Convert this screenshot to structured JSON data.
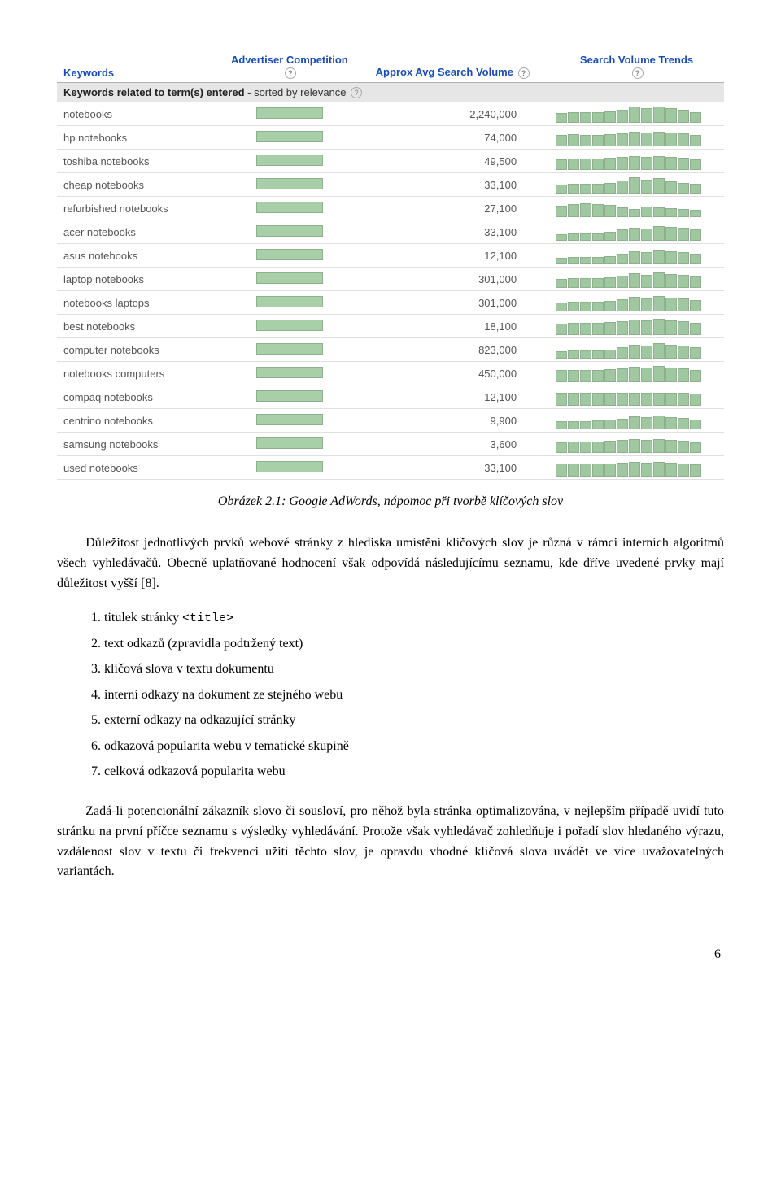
{
  "table": {
    "headers": {
      "keywords": "Keywords",
      "competition": "Advertiser Competition",
      "volume": "Approx Avg Search Volume",
      "trends": "Search Volume Trends"
    },
    "subheader_bold": "Keywords related to term(s) entered",
    "subheader_rest": " - sorted by relevance",
    "bar_color": "#a8cfa8",
    "bar_border": "#8fb08f",
    "header_color": "#1a4db3",
    "rows": [
      {
        "kw": "notebooks",
        "vol": "2,240,000",
        "trend": [
          10,
          11,
          11,
          11,
          12,
          14,
          18,
          16,
          18,
          16,
          14,
          11
        ]
      },
      {
        "kw": "hp notebooks",
        "vol": "74,000",
        "trend": [
          12,
          13,
          12,
          12,
          13,
          14,
          16,
          15,
          16,
          15,
          14,
          12
        ]
      },
      {
        "kw": "toshiba notebooks",
        "vol": "49,500",
        "trend": [
          11,
          12,
          12,
          12,
          13,
          14,
          15,
          14,
          15,
          14,
          13,
          11
        ]
      },
      {
        "kw": "cheap notebooks",
        "vol": "33,100",
        "trend": [
          9,
          10,
          10,
          10,
          11,
          14,
          18,
          15,
          17,
          13,
          11,
          10
        ]
      },
      {
        "kw": "refurbished notebooks",
        "vol": "27,100",
        "trend": [
          12,
          14,
          15,
          14,
          13,
          10,
          8,
          11,
          10,
          9,
          8,
          7
        ]
      },
      {
        "kw": "acer notebooks",
        "vol": "33,100",
        "trend": [
          6,
          7,
          7,
          7,
          9,
          12,
          14,
          13,
          16,
          15,
          14,
          12
        ]
      },
      {
        "kw": "asus notebooks",
        "vol": "12,100",
        "trend": [
          6,
          7,
          7,
          7,
          8,
          11,
          14,
          13,
          15,
          14,
          13,
          11
        ]
      },
      {
        "kw": "laptop notebooks",
        "vol": "301,000",
        "trend": [
          9,
          10,
          10,
          10,
          11,
          13,
          16,
          14,
          17,
          15,
          14,
          12
        ]
      },
      {
        "kw": "notebooks laptops",
        "vol": "301,000",
        "trend": [
          9,
          10,
          10,
          10,
          11,
          13,
          16,
          14,
          17,
          15,
          14,
          12
        ]
      },
      {
        "kw": "best notebooks",
        "vol": "18,100",
        "trend": [
          12,
          13,
          13,
          13,
          14,
          15,
          17,
          16,
          18,
          16,
          15,
          13
        ]
      },
      {
        "kw": "computer notebooks",
        "vol": "823,000",
        "trend": [
          7,
          8,
          8,
          8,
          9,
          12,
          15,
          14,
          17,
          15,
          14,
          12
        ]
      },
      {
        "kw": "notebooks computers",
        "vol": "450,000",
        "trend": [
          13,
          13,
          13,
          13,
          14,
          15,
          17,
          16,
          18,
          16,
          15,
          13
        ]
      },
      {
        "kw": "compaq notebooks",
        "vol": "12,100",
        "trend": [
          14,
          14,
          14,
          14,
          14,
          14,
          14,
          14,
          14,
          14,
          14,
          13
        ]
      },
      {
        "kw": "centrino notebooks",
        "vol": "9,900",
        "trend": [
          8,
          8,
          8,
          9,
          10,
          11,
          14,
          13,
          15,
          13,
          12,
          10
        ]
      },
      {
        "kw": "samsung notebooks",
        "vol": "3,600",
        "trend": [
          11,
          12,
          12,
          12,
          13,
          14,
          15,
          14,
          15,
          14,
          13,
          11
        ]
      },
      {
        "kw": "used notebooks",
        "vol": "33,100",
        "trend": [
          14,
          14,
          14,
          14,
          14,
          15,
          16,
          15,
          16,
          15,
          14,
          13
        ]
      }
    ]
  },
  "caption": "Obrázek 2.1: Google AdWords, nápomoc při tvorbě klíčových slov",
  "para1": "Důležitost jednotlivých prvků webové stránky z hlediska umístění klíčových slov je různá v rámci interních algoritmů všech vyhledávačů. Obecně uplatňované hodnocení však odpovídá následujícímu seznamu, kde dříve uvedené prvky mají důležitost vyšší [8].",
  "list": [
    {
      "pre": "titulek stránky ",
      "code": "<title>"
    },
    {
      "pre": "text odkazů (zpravidla podtržený text)"
    },
    {
      "pre": "klíčová slova v textu dokumentu"
    },
    {
      "pre": "interní odkazy na dokument ze stejného webu"
    },
    {
      "pre": "externí odkazy na odkazující stránky"
    },
    {
      "pre": "odkazová popularita webu v tematické skupině"
    },
    {
      "pre": "celková odkazová popularita webu"
    }
  ],
  "para2": "Zadá-li potencionální zákazník slovo či sousloví, pro něhož byla stránka optimalizována, v nejlepším případě uvidí tuto stránku na první příčce seznamu s výsledky vyhledávání. Protože však vyhledávač zohledňuje i pořadí slov hledaného výrazu, vzdálenost slov v textu či frekvenci užití těchto slov, je opravdu vhodné klíčová slova uvádět ve více uvažovatelných variantách.",
  "page_number": "6"
}
